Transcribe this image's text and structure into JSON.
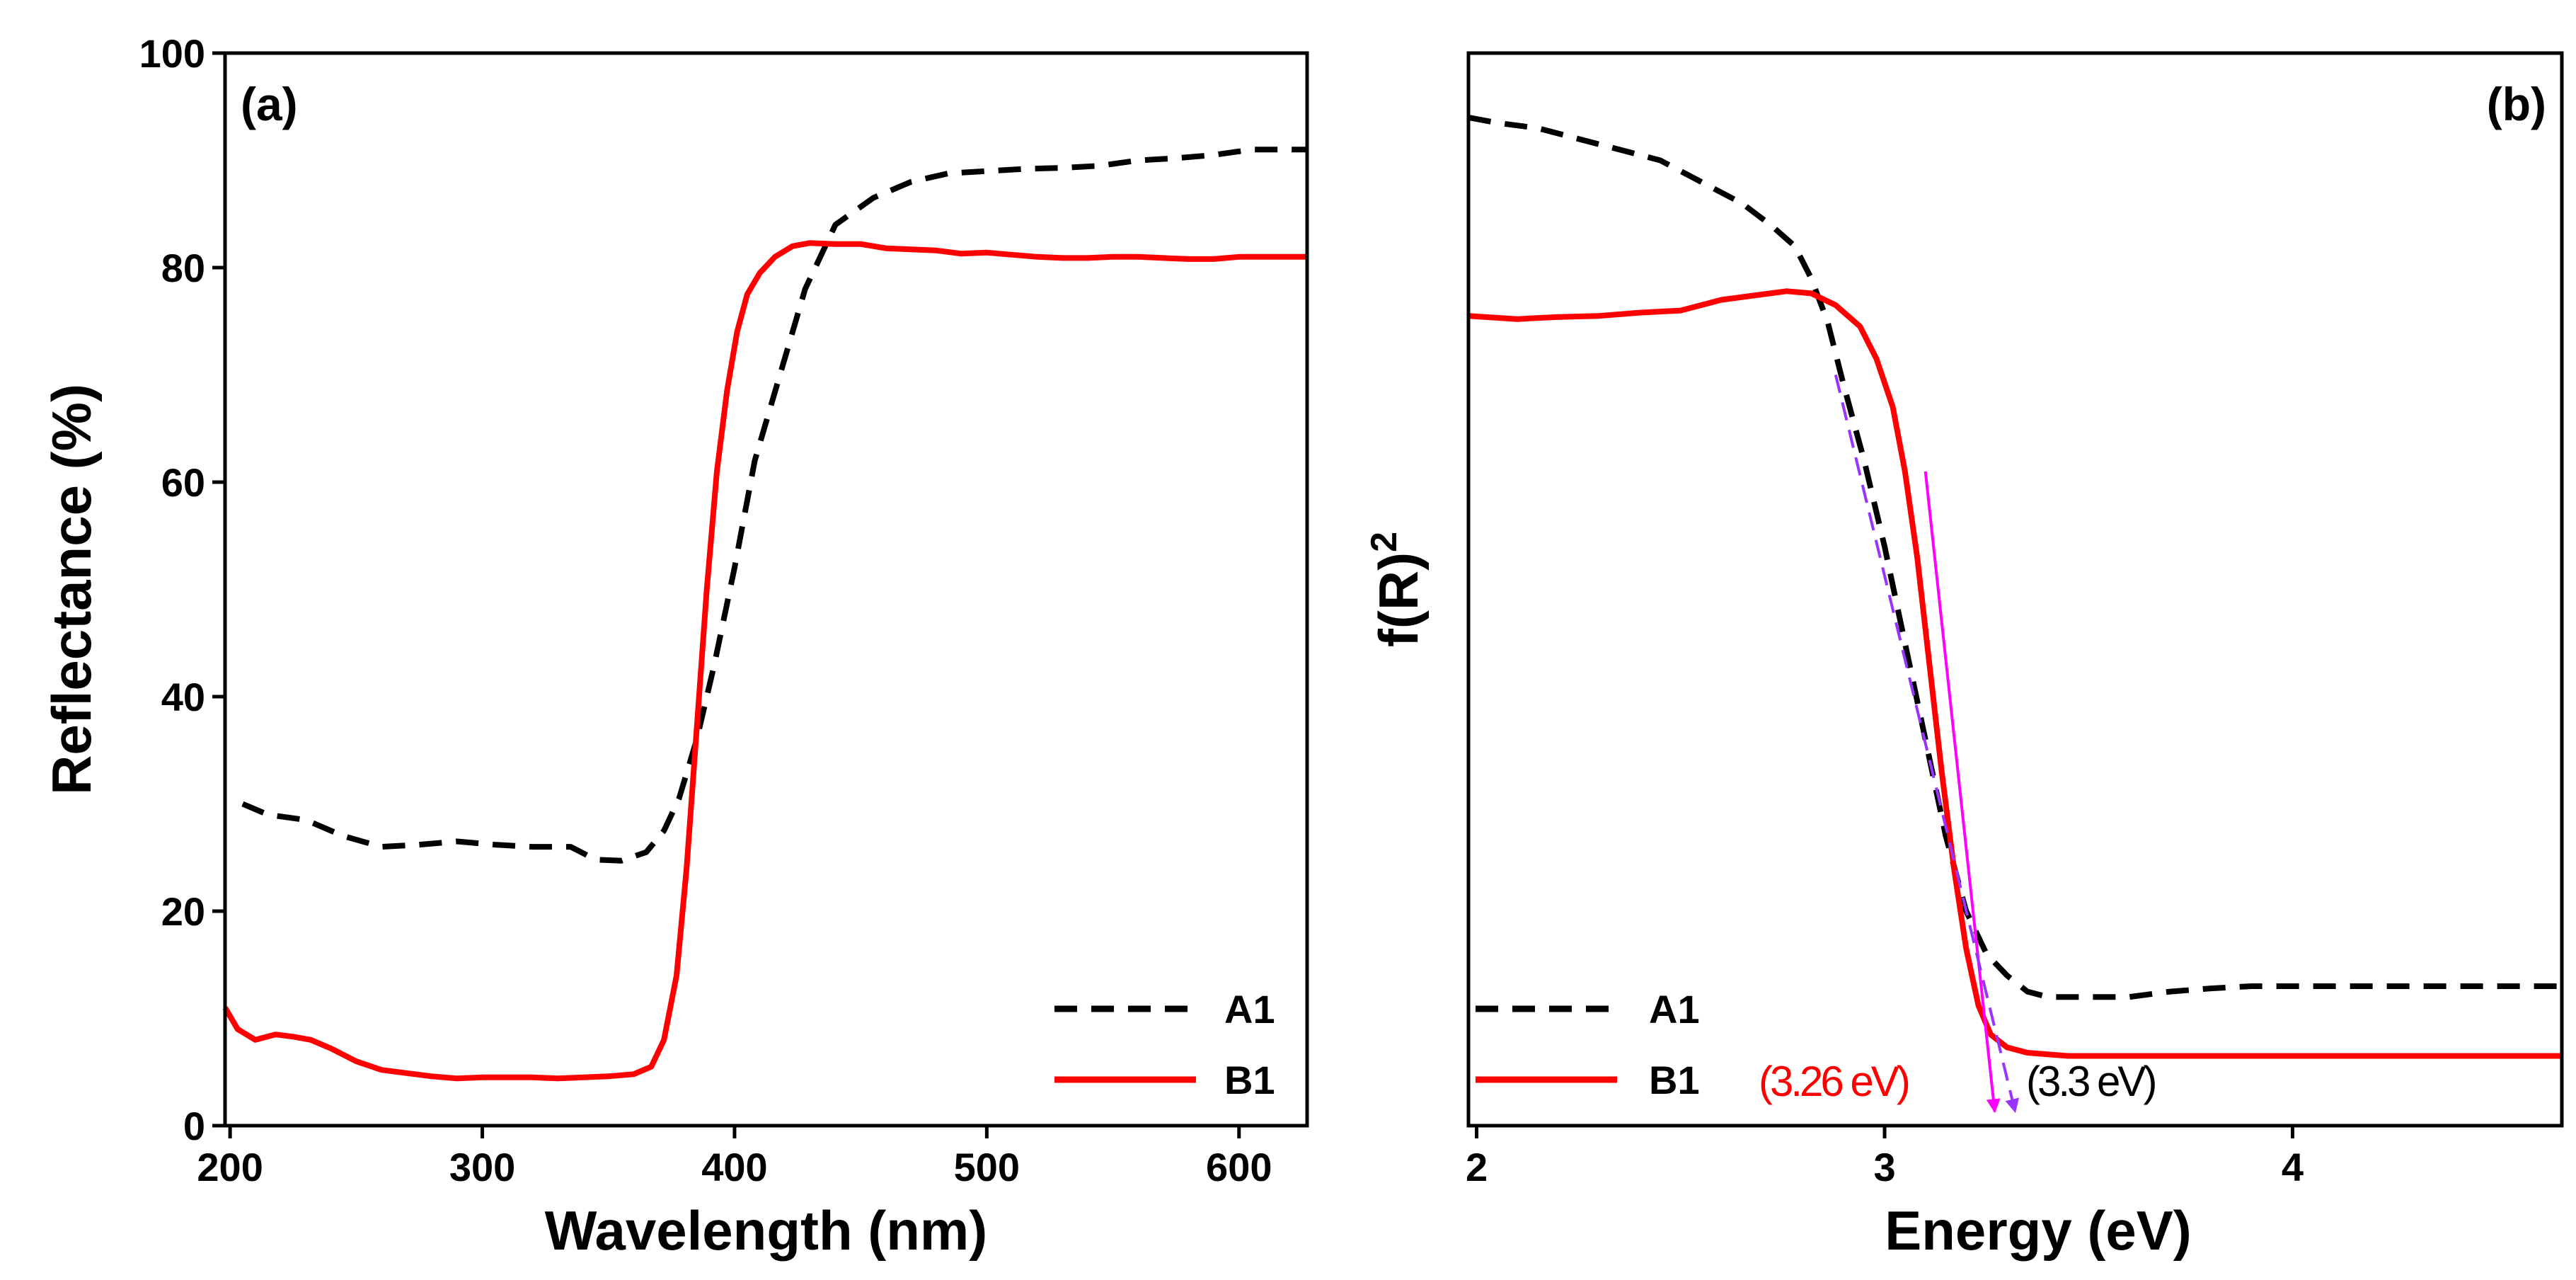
{
  "chart_data": [
    {
      "type": "line",
      "panel_label": "(a)",
      "xlabel": "Wavelength (nm)",
      "ylabel": "Reflectance (%)",
      "xlim": [
        198,
        627
      ],
      "ylim": [
        0,
        100
      ],
      "xticks": [
        200,
        300,
        400,
        500,
        600
      ],
      "yticks": [
        0,
        20,
        40,
        60,
        80,
        100
      ],
      "legend": "bottom-right",
      "series": [
        {
          "name": "A1",
          "color": "#000000",
          "style": "dashed",
          "x": [
            205,
            215,
            230,
            245,
            260,
            275,
            290,
            305,
            320,
            335,
            345,
            355,
            365,
            372,
            378,
            385,
            392,
            400,
            408,
            418,
            428,
            440,
            455,
            470,
            485,
            500,
            515,
            530,
            545,
            560,
            575,
            590,
            605,
            615,
            627
          ],
          "y": [
            30,
            29,
            28.5,
            27,
            26,
            26.2,
            26.5,
            26.2,
            26,
            26,
            24.8,
            24.7,
            25.5,
            27.5,
            30.5,
            36,
            43,
            52,
            62,
            70,
            78,
            84,
            86.5,
            88,
            88.8,
            89,
            89.2,
            89.3,
            89.5,
            90,
            90.2,
            90.5,
            91,
            91,
            91
          ]
        },
        {
          "name": "B1",
          "color": "#ff0000",
          "style": "solid",
          "x": [
            198,
            203,
            210,
            218,
            225,
            232,
            240,
            250,
            260,
            270,
            280,
            290,
            300,
            310,
            320,
            330,
            340,
            350,
            360,
            367,
            372,
            377,
            381,
            385,
            389,
            393,
            397,
            401,
            405,
            410,
            416,
            423,
            430,
            440,
            450,
            460,
            470,
            480,
            490,
            500,
            510,
            520,
            530,
            540,
            550,
            560,
            570,
            580,
            590,
            600,
            610,
            620,
            627
          ],
          "y": [
            11,
            9,
            8,
            8.5,
            8.3,
            8,
            7.2,
            6,
            5.2,
            4.9,
            4.6,
            4.4,
            4.5,
            4.5,
            4.5,
            4.4,
            4.5,
            4.6,
            4.8,
            5.5,
            8,
            14,
            24,
            37,
            50,
            61,
            68.5,
            74,
            77.5,
            79.5,
            81,
            82,
            82.3,
            82.2,
            82.2,
            81.8,
            81.7,
            81.6,
            81.3,
            81.4,
            81.2,
            81,
            80.9,
            80.9,
            81,
            81,
            80.9,
            80.8,
            80.8,
            81,
            81,
            81,
            81
          ]
        }
      ]
    },
    {
      "type": "line",
      "panel_label": "(b)",
      "xlabel": "Energy (eV)",
      "ylabel": "f(R)",
      "ylabel_superscript": "2",
      "xlim": [
        1.98,
        4.66
      ],
      "ylim": [
        0,
        100
      ],
      "y_ticks_shown": false,
      "xticks": [
        2,
        3,
        4
      ],
      "legend": "bottom-left",
      "series": [
        {
          "name": "A1",
          "color": "#000000",
          "style": "dashed",
          "x": [
            1.98,
            2.05,
            2.15,
            2.25,
            2.35,
            2.45,
            2.55,
            2.65,
            2.72,
            2.78,
            2.82,
            2.86,
            2.9,
            2.95,
            3.0,
            3.05,
            3.1,
            3.15,
            3.2,
            3.25,
            3.3,
            3.35,
            3.4,
            3.5,
            3.6,
            3.7,
            3.8,
            3.9,
            4.0,
            4.2,
            4.4,
            4.66
          ],
          "y": [
            94,
            93.5,
            93,
            92,
            91,
            90,
            88,
            86,
            84,
            82,
            79,
            75,
            69,
            62,
            54,
            45,
            36,
            27,
            20,
            16,
            14,
            12.5,
            12,
            12,
            12,
            12.5,
            12.8,
            13,
            13,
            13,
            13,
            13
          ]
        },
        {
          "name": "B1",
          "color": "#ff0000",
          "style": "solid",
          "x": [
            1.98,
            2.1,
            2.2,
            2.3,
            2.4,
            2.5,
            2.6,
            2.7,
            2.76,
            2.82,
            2.88,
            2.94,
            2.98,
            3.02,
            3.05,
            3.08,
            3.11,
            3.14,
            3.17,
            3.2,
            3.23,
            3.26,
            3.3,
            3.35,
            3.45,
            3.6,
            3.8,
            4.0,
            4.3,
            4.66
          ],
          "y": [
            75.5,
            75.2,
            75.4,
            75.5,
            75.8,
            76,
            77,
            77.5,
            77.8,
            77.6,
            76.5,
            74.5,
            71.5,
            67,
            61,
            53,
            43,
            33,
            24,
            16.5,
            11.2,
            8.5,
            7.3,
            6.8,
            6.5,
            6.5,
            6.5,
            6.5,
            6.5,
            6.5
          ]
        }
      ],
      "annotations": [
        {
          "text": "(3.26 eV)",
          "color": "#ff0000"
        },
        {
          "text": "(3.3 eV)",
          "color": "#000000"
        }
      ],
      "tangent_lines": [
        {
          "color": "#ff00ff",
          "style": "solid",
          "from": [
            3.1,
            61
          ],
          "to": [
            3.27,
            1.3
          ]
        },
        {
          "color": "#9933ff",
          "style": "dashed",
          "from": [
            2.88,
            70
          ],
          "to": [
            3.32,
            1.3
          ]
        }
      ]
    }
  ]
}
